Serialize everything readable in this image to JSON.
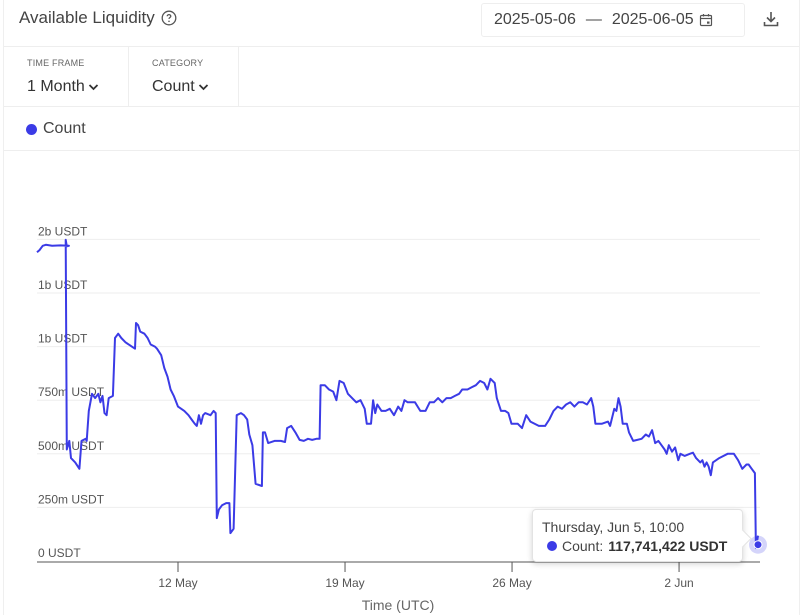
{
  "header": {
    "title": "Available Liquidity",
    "date_start": "2025-05-06",
    "date_sep": "—",
    "date_end": "2025-06-05"
  },
  "filters": {
    "time_frame": {
      "label": "TIME FRAME",
      "value": "1 Month"
    },
    "category": {
      "label": "CATEGORY",
      "value": "Count"
    }
  },
  "legend": {
    "label": "Count",
    "color": "#3b3be6"
  },
  "tooltip": {
    "title": "Thursday, Jun 5, 10:00",
    "series": "Count:",
    "value": "117,741,422 USDT"
  },
  "colors": {
    "line": "#3b3be6",
    "grid": "#eeeeee",
    "axis": "#555555"
  },
  "chart_data": {
    "type": "line",
    "title": "Available Liquidity",
    "xlabel": "Time (UTC)",
    "ylabel": "",
    "y_tick_labels": [
      "0 USDT",
      "250m USDT",
      "500m USDT",
      "750m USDT",
      "1b USDT",
      "1b USDT",
      "2b USDT"
    ],
    "y_tick_values": [
      0,
      250,
      500,
      750,
      1000,
      1250,
      1500
    ],
    "x_tick_labels": [
      "12 May",
      "19 May",
      "26 May",
      "2 Jun"
    ],
    "x_tick_days": [
      6,
      13,
      20,
      27
    ],
    "x_range_days": [
      0.08,
      30.4
    ],
    "ylim": [
      0,
      1500
    ],
    "grid": true,
    "legend_position": "top-left",
    "units": "million USDT; x in days since 2025-05-06 00:00 UTC",
    "series": [
      {
        "name": "Count",
        "points": [
          [
            0.08,
            1440
          ],
          [
            0.2,
            1450
          ],
          [
            0.35,
            1470
          ],
          [
            0.5,
            1475
          ],
          [
            0.8,
            1470
          ],
          [
            1.2,
            1472
          ],
          [
            1.6,
            1470
          ],
          [
            1.5,
            1468
          ],
          [
            1.45,
            1498
          ],
          [
            1.5,
            520
          ],
          [
            1.62,
            560
          ],
          [
            1.7,
            480
          ],
          [
            1.9,
            460
          ],
          [
            2.1,
            430
          ],
          [
            2.2,
            560
          ],
          [
            2.4,
            570
          ],
          [
            2.45,
            560
          ],
          [
            2.55,
            700
          ],
          [
            2.7,
            780
          ],
          [
            2.85,
            760
          ],
          [
            3.0,
            780
          ],
          [
            3.1,
            740
          ],
          [
            3.2,
            770
          ],
          [
            3.3,
            690
          ],
          [
            3.4,
            680
          ],
          [
            3.5,
            760
          ],
          [
            3.7,
            770
          ],
          [
            3.8,
            1040
          ],
          [
            3.95,
            1060
          ],
          [
            4.1,
            1040
          ],
          [
            4.3,
            1020
          ],
          [
            4.6,
            1000
          ],
          [
            4.75,
            990
          ],
          [
            4.8,
            1110
          ],
          [
            4.9,
            1100
          ],
          [
            5.0,
            1070
          ],
          [
            5.2,
            1060
          ],
          [
            5.35,
            1040
          ],
          [
            5.5,
            1010
          ],
          [
            5.7,
            1000
          ],
          [
            5.8,
            990
          ],
          [
            6.0,
            960
          ],
          [
            6.15,
            900
          ],
          [
            6.3,
            860
          ],
          [
            6.45,
            800
          ],
          [
            6.6,
            770
          ],
          [
            6.8,
            720
          ],
          [
            7.1,
            700
          ],
          [
            7.3,
            680
          ],
          [
            7.45,
            660
          ],
          [
            7.6,
            640
          ],
          [
            7.7,
            630
          ],
          [
            7.8,
            680
          ],
          [
            7.9,
            640
          ],
          [
            8.0,
            680
          ],
          [
            8.1,
            690
          ],
          [
            8.35,
            680
          ],
          [
            8.5,
            700
          ],
          [
            8.6,
            690
          ],
          [
            8.65,
            200
          ],
          [
            8.75,
            240
          ],
          [
            8.9,
            260
          ],
          [
            9.1,
            270
          ],
          [
            9.25,
            270
          ],
          [
            9.3,
            130
          ],
          [
            9.45,
            150
          ],
          [
            9.6,
            680
          ],
          [
            9.8,
            690
          ],
          [
            9.95,
            680
          ],
          [
            10.1,
            660
          ],
          [
            10.2,
            590
          ],
          [
            10.35,
            540
          ],
          [
            10.5,
            360
          ],
          [
            10.8,
            350
          ],
          [
            10.85,
            600
          ],
          [
            10.95,
            600
          ],
          [
            11.1,
            550
          ],
          [
            11.4,
            560
          ],
          [
            11.7,
            560
          ],
          [
            11.9,
            555
          ],
          [
            12.0,
            620
          ],
          [
            12.2,
            630
          ],
          [
            12.4,
            600
          ],
          [
            12.6,
            565
          ],
          [
            12.8,
            560
          ],
          [
            13.0,
            570
          ],
          [
            13.2,
            565
          ],
          [
            13.4,
            570
          ],
          [
            13.55,
            570
          ],
          [
            13.6,
            820
          ],
          [
            13.8,
            820
          ],
          [
            14.0,
            800
          ],
          [
            14.2,
            790
          ],
          [
            14.35,
            750
          ],
          [
            14.5,
            840
          ],
          [
            14.7,
            830
          ],
          [
            14.9,
            780
          ],
          [
            15.1,
            760
          ],
          [
            15.3,
            740
          ],
          [
            15.5,
            750
          ],
          [
            15.7,
            710
          ],
          [
            15.8,
            640
          ],
          [
            16.0,
            640
          ],
          [
            16.1,
            750
          ],
          [
            16.2,
            690
          ],
          [
            16.3,
            730
          ],
          [
            16.5,
            700
          ],
          [
            16.7,
            700
          ],
          [
            16.9,
            710
          ],
          [
            17.1,
            680
          ],
          [
            17.3,
            720
          ],
          [
            17.45,
            700
          ],
          [
            17.6,
            750
          ],
          [
            17.75,
            740
          ],
          [
            17.9,
            740
          ],
          [
            18.1,
            740
          ],
          [
            18.35,
            700
          ],
          [
            18.6,
            700
          ],
          [
            18.8,
            740
          ],
          [
            19.0,
            740
          ],
          [
            19.2,
            760
          ],
          [
            19.4,
            740
          ],
          [
            19.6,
            760
          ],
          [
            19.8,
            760
          ],
          [
            20.0,
            770
          ],
          [
            20.2,
            780
          ],
          [
            20.35,
            800
          ],
          [
            20.6,
            800
          ],
          [
            20.8,
            810
          ],
          [
            21.0,
            820
          ],
          [
            21.2,
            840
          ],
          [
            21.4,
            830
          ],
          [
            21.55,
            800
          ],
          [
            21.7,
            850
          ],
          [
            21.9,
            830
          ],
          [
            22.0,
            760
          ],
          [
            22.2,
            700
          ],
          [
            22.4,
            700
          ],
          [
            22.55,
            690
          ],
          [
            22.7,
            640
          ],
          [
            23.0,
            640
          ],
          [
            23.2,
            620
          ],
          [
            23.4,
            680
          ],
          [
            23.6,
            650
          ],
          [
            23.8,
            640
          ],
          [
            24.0,
            630
          ],
          [
            24.3,
            630
          ],
          [
            24.5,
            660
          ],
          [
            24.7,
            700
          ],
          [
            24.9,
            720
          ],
          [
            25.1,
            710
          ],
          [
            25.3,
            730
          ],
          [
            25.5,
            740
          ],
          [
            25.7,
            720
          ],
          [
            25.9,
            740
          ],
          [
            26.1,
            740
          ],
          [
            26.3,
            730
          ],
          [
            26.5,
            760
          ],
          [
            26.6,
            720
          ],
          [
            26.7,
            640
          ],
          [
            27.0,
            640
          ],
          [
            27.3,
            650
          ],
          [
            27.4,
            630
          ],
          [
            27.6,
            710
          ],
          [
            27.7,
            700
          ],
          [
            27.8,
            760
          ],
          [
            27.9,
            720
          ],
          [
            28.0,
            640
          ],
          [
            28.2,
            640
          ],
          [
            28.3,
            600
          ],
          [
            28.5,
            560
          ],
          [
            28.9,
            570
          ],
          [
            29.1,
            590
          ],
          [
            29.25,
            580
          ],
          [
            29.4,
            610
          ],
          [
            29.55,
            550
          ],
          [
            29.7,
            560
          ],
          [
            29.85,
            540
          ],
          [
            30.0,
            520
          ],
          [
            30.1,
            500
          ],
          [
            30.2,
            540
          ],
          [
            30.35,
            510
          ],
          [
            30.5,
            530
          ],
          [
            30.65,
            470
          ],
          [
            30.75,
            500
          ],
          [
            30.95,
            490
          ],
          [
            31.2,
            500
          ],
          [
            31.35,
            505
          ],
          [
            31.5,
            480
          ],
          [
            31.7,
            460
          ],
          [
            31.8,
            470
          ],
          [
            31.9,
            440
          ],
          [
            32.0,
            460
          ],
          [
            32.1,
            440
          ],
          [
            32.2,
            400
          ],
          [
            32.3,
            460
          ],
          [
            32.6,
            480
          ],
          [
            33.0,
            500
          ],
          [
            33.3,
            500
          ],
          [
            33.5,
            470
          ],
          [
            33.7,
            430
          ],
          [
            33.9,
            450
          ],
          [
            34.0,
            450
          ],
          [
            34.15,
            430
          ],
          [
            34.3,
            410
          ],
          [
            34.35,
            60
          ],
          [
            34.4,
            90
          ],
          [
            34.45,
            118
          ]
        ]
      }
    ]
  }
}
